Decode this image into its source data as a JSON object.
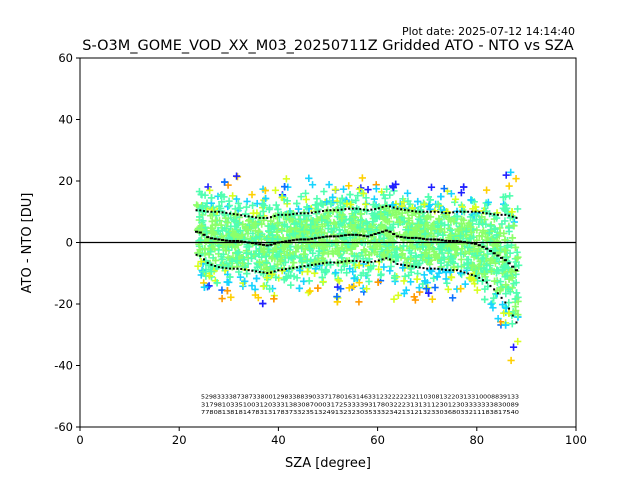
{
  "chart_data": {
    "type": "scatter",
    "plot_date": "Plot date: 2025-07-12 14:14:40",
    "title": "S-O3M_GOME_VOD_XX_M03_20250711Z Gridded ATO - NTO vs SZA",
    "xlabel": "SZA [degree]",
    "ylabel": "ATO - NTO [DU]",
    "xlim": [
      0,
      100
    ],
    "ylim": [
      -60,
      60
    ],
    "xticks": [
      0,
      20,
      40,
      60,
      80,
      100
    ],
    "yticks": [
      -60,
      -40,
      -20,
      0,
      20,
      40,
      60
    ],
    "grid": false,
    "legend": "none",
    "reference_line_y": 0,
    "colormap": [
      "#1f1fff",
      "#0a6fff",
      "#17d4ff",
      "#50ffb0",
      "#8cff6a",
      "#d8ff1e",
      "#ffd000",
      "#ff9a00"
    ],
    "mean_series": {
      "x": [
        24,
        26,
        28,
        30,
        32,
        34,
        36,
        38,
        40,
        42,
        44,
        46,
        48,
        50,
        52,
        54,
        56,
        58,
        60,
        62,
        64,
        66,
        68,
        70,
        72,
        74,
        76,
        78,
        80,
        82,
        84,
        86,
        88
      ],
      "y": [
        3.5,
        1.5,
        1,
        0.5,
        0.5,
        0,
        -0.5,
        -1,
        0,
        0.5,
        1,
        1,
        1.5,
        2,
        2,
        2.5,
        2.5,
        2,
        3,
        4,
        2,
        1.5,
        1.5,
        1,
        1,
        0.5,
        0.5,
        0,
        -0.5,
        -2,
        -4,
        -6,
        -9
      ]
    },
    "upper_spread": {
      "x": [
        24,
        26,
        28,
        30,
        32,
        34,
        36,
        38,
        40,
        42,
        44,
        46,
        48,
        50,
        52,
        54,
        56,
        58,
        60,
        62,
        64,
        66,
        68,
        70,
        72,
        74,
        76,
        78,
        80,
        82,
        84,
        86,
        88
      ],
      "y": [
        10.5,
        10,
        10,
        9.5,
        9,
        8.5,
        8,
        8,
        9,
        9,
        9.5,
        9.5,
        10,
        10.5,
        10.5,
        11,
        11,
        10.5,
        11,
        12,
        11,
        10.5,
        10,
        10,
        10,
        9.5,
        10,
        10,
        10,
        9.5,
        9,
        9,
        8
      ]
    },
    "lower_spread": {
      "x": [
        24,
        26,
        28,
        30,
        32,
        34,
        36,
        38,
        40,
        42,
        44,
        46,
        48,
        50,
        52,
        54,
        56,
        58,
        60,
        62,
        64,
        66,
        68,
        70,
        72,
        74,
        76,
        78,
        80,
        82,
        84,
        86,
        88
      ],
      "y": [
        -4,
        -7,
        -8,
        -8.5,
        -8.5,
        -9,
        -9.5,
        -10,
        -9,
        -8.5,
        -8,
        -7.5,
        -7,
        -6.5,
        -6.5,
        -6,
        -6,
        -6.5,
        -6,
        -5,
        -7,
        -7.5,
        -8,
        -8.5,
        -8.5,
        -9,
        -9,
        -10,
        -11,
        -13,
        -16,
        -20,
        -26
      ]
    },
    "count_rows": [
      "52983333873873380012983388390337178016314633123222223211030813220313310008839133",
      "3179810335100312033313830870003172533339317803222313131123012303333333830089",
      "7780813818147831317837332351324913232303533323421312132330368033211183817540"
    ]
  }
}
